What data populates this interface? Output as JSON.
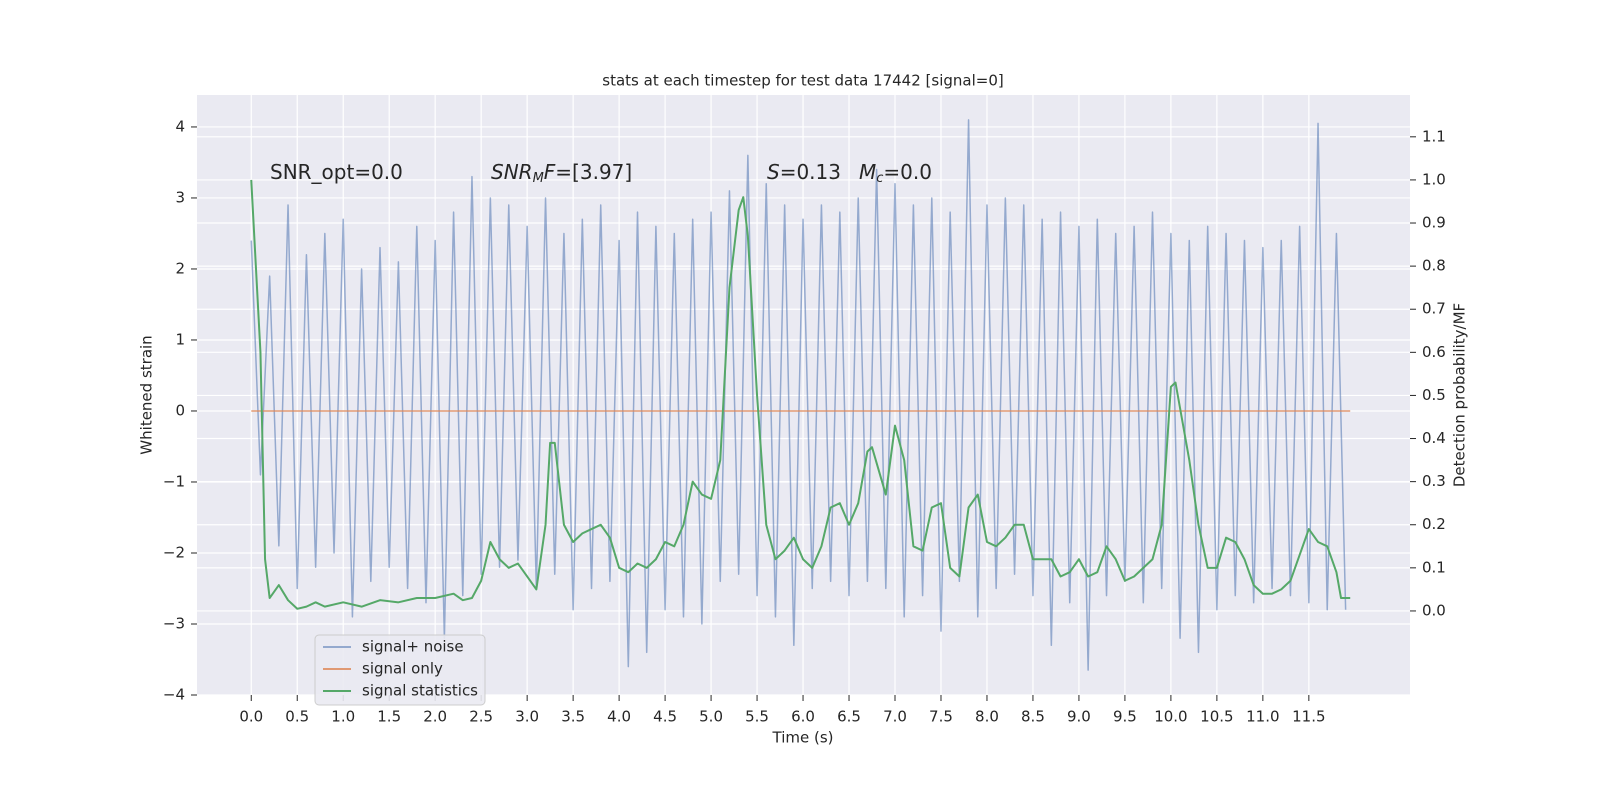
{
  "chart_data": {
    "type": "line",
    "title": "stats at each timestep for test data 17442 [signal=0]",
    "xlabel": "Time (s)",
    "ylabel": "Whitened strain",
    "y2label": "Detection probability/MF",
    "xlim": [
      -0.59,
      12.6
    ],
    "ylim": [
      -4,
      4.45
    ],
    "y2lim": [
      -0.195,
      1.197
    ],
    "xticks": [
      {
        "value": 0,
        "label": "0.0"
      },
      0.5,
      {
        "value": 1,
        "label": "1.0"
      },
      1.5,
      {
        "value": 2,
        "label": "2.0"
      },
      2.5,
      {
        "value": 3,
        "label": "3.0"
      },
      3.5,
      {
        "value": 4,
        "label": "4.0"
      },
      4.5,
      {
        "value": 5,
        "label": "5.0"
      },
      5.5,
      {
        "value": 6,
        "label": "6.0"
      },
      6.5,
      {
        "value": 7,
        "label": "7.0"
      },
      7.5,
      {
        "value": 8,
        "label": "8.0"
      },
      8.5,
      {
        "value": 9,
        "label": "9.0"
      },
      9.5,
      {
        "value": 10,
        "label": "10.0"
      },
      10.5,
      {
        "value": 11,
        "label": "11.0"
      },
      11.5
    ],
    "yticks": [
      {
        "value": -4,
        "label": "−4"
      },
      {
        "value": -3,
        "label": "−3"
      },
      {
        "value": -2,
        "label": "−2"
      },
      {
        "value": -1,
        "label": "−1"
      },
      0,
      1,
      2,
      3,
      4
    ],
    "y2ticks": [
      {
        "value": 0,
        "label": "0.0"
      },
      0.1,
      0.2,
      0.3,
      0.4,
      0.5,
      0.6,
      0.7,
      0.8,
      0.9,
      {
        "value": 1,
        "label": "1.0"
      },
      1.1
    ],
    "grid": true,
    "legend": "lower left",
    "annotations": [
      [
        {
          "text": "SNR_opt=0.0"
        }
      ],
      [
        {
          "text": "SNR",
          "style": "italic"
        },
        {
          "text": "M",
          "style": "sub"
        },
        {
          "text": "F",
          "style": "italic"
        },
        {
          "text": "=[3.97]"
        }
      ],
      [
        {
          "text": "S",
          "style": "italic"
        },
        {
          "text": "=0.13"
        }
      ],
      [
        {
          "text": "M",
          "style": "italic"
        },
        {
          "text": "c",
          "style": "sub"
        },
        {
          "text": "=0.0"
        }
      ]
    ],
    "series": [
      {
        "name": "signal+ noise",
        "color": "#4c72b0",
        "opacity": 0.55,
        "x": [
          0,
          0.1,
          0.2,
          0.3,
          0.4,
          0.5,
          0.6,
          0.7,
          0.8,
          0.9,
          1,
          1.1,
          1.2,
          1.3,
          1.4,
          1.5,
          1.6,
          1.7,
          1.8,
          1.9,
          2,
          2.1,
          2.2,
          2.3,
          2.4,
          2.5,
          2.6,
          2.7,
          2.8,
          2.9,
          3,
          3.1,
          3.2,
          3.3,
          3.4,
          3.5,
          3.6,
          3.7,
          3.8,
          3.9,
          4,
          4.1,
          4.2,
          4.3,
          4.4,
          4.5,
          4.6,
          4.7,
          4.8,
          4.9,
          5,
          5.1,
          5.2,
          5.3,
          5.4,
          5.5,
          5.6,
          5.7,
          5.8,
          5.9,
          6,
          6.1,
          6.2,
          6.3,
          6.4,
          6.5,
          6.6,
          6.7,
          6.8,
          6.9,
          7,
          7.1,
          7.2,
          7.3,
          7.4,
          7.5,
          7.6,
          7.7,
          7.8,
          7.9,
          8,
          8.1,
          8.2,
          8.3,
          8.4,
          8.5,
          8.6,
          8.7,
          8.8,
          8.9,
          9,
          9.1,
          9.2,
          9.3,
          9.4,
          9.5,
          9.6,
          9.7,
          9.8,
          9.9,
          10,
          10.1,
          10.2,
          10.3,
          10.4,
          10.5,
          10.6,
          10.7,
          10.8,
          10.9,
          11,
          11.1,
          11.2,
          11.3,
          11.4,
          11.5,
          11.6,
          11.7,
          11.8,
          11.9
        ],
        "values": [
          2.4,
          -0.9,
          1.9,
          -1.9,
          2.9,
          -2.5,
          2.2,
          -2.2,
          2.5,
          -2.0,
          2.7,
          -2.9,
          2.0,
          -2.4,
          2.3,
          -2.2,
          2.1,
          -2.5,
          2.6,
          -2.7,
          2.4,
          -3.2,
          2.8,
          -2.6,
          3.3,
          -2.3,
          3.0,
          -2.2,
          2.9,
          -2.1,
          2.6,
          -2.5,
          3.0,
          -2.3,
          2.5,
          -2.8,
          2.7,
          -2.5,
          2.9,
          -2.4,
          2.4,
          -3.6,
          2.8,
          -3.4,
          2.6,
          -2.8,
          2.5,
          -2.9,
          2.7,
          -3.0,
          2.8,
          -2.4,
          3.1,
          -2.3,
          3.6,
          -2.6,
          3.2,
          -2.9,
          2.9,
          -3.3,
          2.7,
          -2.5,
          2.9,
          -2.4,
          2.8,
          -2.6,
          3.0,
          -2.4,
          3.4,
          -2.5,
          3.2,
          -2.9,
          2.9,
          -2.6,
          3.0,
          -3.1,
          2.8,
          -2.4,
          4.1,
          -2.9,
          2.9,
          -2.5,
          3.0,
          -2.3,
          2.9,
          -2.6,
          2.7,
          -3.3,
          2.8,
          -2.7,
          2.6,
          -3.65,
          2.7,
          -2.6,
          2.5,
          -2.4,
          2.6,
          -2.7,
          2.8,
          -2.5,
          2.5,
          -3.2,
          2.4,
          -3.4,
          2.6,
          -2.8,
          2.5,
          -2.6,
          2.4,
          -2.7,
          2.3,
          -2.5,
          2.4,
          -2.6,
          2.6,
          -2.7,
          4.05,
          -2.8,
          2.5,
          -2.8
        ]
      },
      {
        "name": "signal only",
        "color": "#dd8452",
        "opacity": 0.8,
        "x": [
          0,
          11.95
        ],
        "values": [
          0,
          0
        ]
      },
      {
        "name": "signal statistics",
        "color": "#55a868",
        "axis": "y2",
        "x": [
          0,
          0.1,
          0.15,
          0.2,
          0.3,
          0.4,
          0.5,
          0.6,
          0.7,
          0.8,
          1.0,
          1.2,
          1.4,
          1.6,
          1.8,
          2.0,
          2.2,
          2.3,
          2.4,
          2.5,
          2.6,
          2.7,
          2.8,
          2.9,
          3.0,
          3.1,
          3.2,
          3.25,
          3.3,
          3.4,
          3.5,
          3.6,
          3.7,
          3.8,
          3.9,
          4.0,
          4.1,
          4.2,
          4.3,
          4.4,
          4.5,
          4.6,
          4.7,
          4.8,
          4.9,
          5.0,
          5.1,
          5.2,
          5.3,
          5.35,
          5.4,
          5.5,
          5.6,
          5.7,
          5.8,
          5.9,
          6.0,
          6.1,
          6.2,
          6.3,
          6.4,
          6.5,
          6.6,
          6.7,
          6.75,
          6.9,
          7.0,
          7.1,
          7.2,
          7.3,
          7.4,
          7.5,
          7.6,
          7.7,
          7.8,
          7.9,
          8.0,
          8.1,
          8.2,
          8.3,
          8.4,
          8.5,
          8.6,
          8.7,
          8.8,
          8.9,
          9.0,
          9.1,
          9.2,
          9.3,
          9.4,
          9.5,
          9.6,
          9.7,
          9.8,
          9.9,
          10.0,
          10.05,
          10.2,
          10.3,
          10.4,
          10.5,
          10.6,
          10.7,
          10.8,
          10.9,
          11.0,
          11.1,
          11.2,
          11.3,
          11.4,
          11.5,
          11.6,
          11.7,
          11.8,
          11.85,
          11.95
        ],
        "values": [
          1.0,
          0.6,
          0.12,
          0.03,
          0.06,
          0.025,
          0.005,
          0.01,
          0.02,
          0.01,
          0.02,
          0.01,
          0.025,
          0.02,
          0.03,
          0.03,
          0.04,
          0.025,
          0.03,
          0.07,
          0.16,
          0.12,
          0.1,
          0.11,
          0.08,
          0.05,
          0.2,
          0.39,
          0.39,
          0.2,
          0.16,
          0.18,
          0.19,
          0.2,
          0.17,
          0.1,
          0.09,
          0.11,
          0.1,
          0.12,
          0.16,
          0.15,
          0.2,
          0.3,
          0.27,
          0.26,
          0.35,
          0.75,
          0.93,
          0.96,
          0.87,
          0.5,
          0.2,
          0.12,
          0.14,
          0.17,
          0.12,
          0.1,
          0.15,
          0.24,
          0.25,
          0.2,
          0.25,
          0.37,
          0.38,
          0.27,
          0.43,
          0.35,
          0.15,
          0.14,
          0.24,
          0.25,
          0.1,
          0.08,
          0.24,
          0.27,
          0.16,
          0.15,
          0.17,
          0.2,
          0.2,
          0.12,
          0.12,
          0.12,
          0.08,
          0.09,
          0.12,
          0.08,
          0.09,
          0.15,
          0.12,
          0.07,
          0.08,
          0.1,
          0.12,
          0.2,
          0.52,
          0.53,
          0.35,
          0.2,
          0.1,
          0.1,
          0.17,
          0.16,
          0.12,
          0.06,
          0.04,
          0.04,
          0.05,
          0.07,
          0.13,
          0.19,
          0.16,
          0.15,
          0.09,
          0.03,
          0.03
        ]
      }
    ]
  }
}
